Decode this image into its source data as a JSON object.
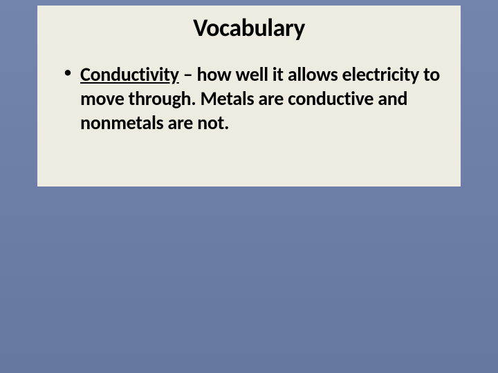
{
  "slide": {
    "title": "Vocabulary",
    "bullet": {
      "term": "Conductivity",
      "separator": " – ",
      "definition": "how well it allows electricity to move through.  Metals are conductive and nonmetals are not."
    },
    "background_gradient_top": "#7285ae",
    "background_gradient_bottom": "#6678a2",
    "content_background": "#eeece1",
    "text_color": "#000000",
    "title_fontsize": 36,
    "body_fontsize": 28
  }
}
